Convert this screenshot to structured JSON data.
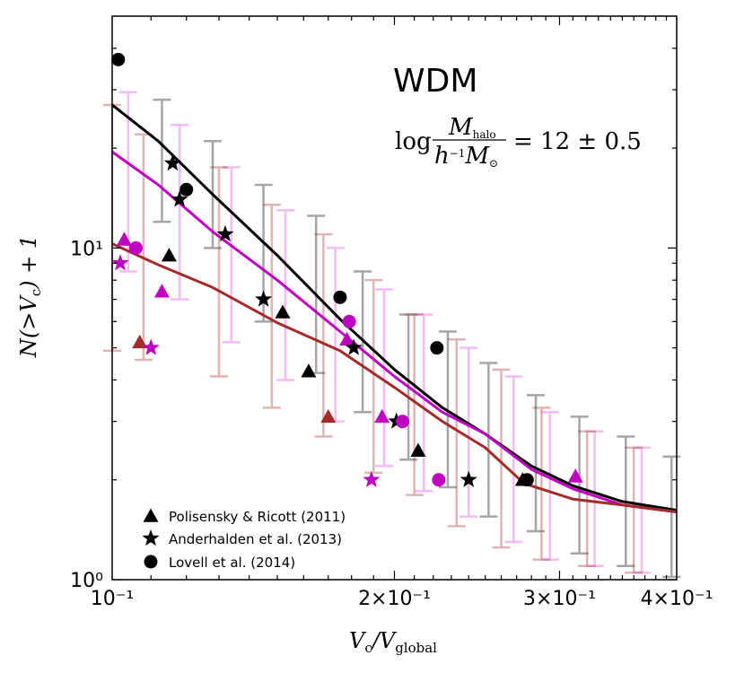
{
  "chart_data": {
    "type": "line",
    "title": "WDM",
    "annotation": "log M_halo / (h^-1 M_⊙) = 12 ± 0.5",
    "xlabel": "V_c / V_global",
    "ylabel": "N(>V_c) + 1",
    "xscale": "log",
    "yscale": "log",
    "xlim": [
      0.1,
      0.4
    ],
    "ylim": [
      1,
      50
    ],
    "x_tick_labels": [
      "10⁻¹",
      "2×10⁻¹",
      "3×10⁻¹",
      "4×10⁻¹"
    ],
    "y_tick_labels": [
      "10⁰",
      "10¹"
    ],
    "series": [
      {
        "name": "black line",
        "color": "#000000",
        "x": [
          0.1,
          0.112,
          0.128,
          0.15,
          0.175,
          0.2,
          0.225,
          0.25,
          0.28,
          0.31,
          0.35,
          0.4
        ],
        "y": [
          27,
          21,
          14.5,
          9.5,
          6.1,
          4.3,
          3.3,
          2.75,
          2.2,
          1.92,
          1.72,
          1.62
        ]
      },
      {
        "name": "magenta line",
        "color": "#c000c0",
        "x": [
          0.1,
          0.112,
          0.128,
          0.15,
          0.175,
          0.2,
          0.225,
          0.25,
          0.28,
          0.31,
          0.35,
          0.4
        ],
        "y": [
          19.5,
          15.5,
          11.2,
          8,
          5.6,
          4.1,
          3.2,
          2.75,
          2.15,
          1.88,
          1.68,
          1.6
        ]
      },
      {
        "name": "brown line",
        "color": "#a52a2a",
        "x": [
          0.1,
          0.112,
          0.128,
          0.15,
          0.175,
          0.2,
          0.225,
          0.25,
          0.275,
          0.31,
          0.35,
          0.4
        ],
        "y": [
          10.3,
          8.9,
          7.6,
          5.95,
          4.9,
          3.8,
          3.0,
          2.5,
          1.95,
          1.75,
          1.68,
          1.6
        ]
      }
    ],
    "error_bars": [
      {
        "color": "#000000",
        "x": 0.113,
        "low": 12,
        "high": 28
      },
      {
        "color": "#000000",
        "x": 0.128,
        "low": 10,
        "high": 21
      },
      {
        "color": "#000000",
        "x": 0.145,
        "low": 6,
        "high": 15.5
      },
      {
        "color": "#000000",
        "x": 0.165,
        "low": 4.2,
        "high": 12.5
      },
      {
        "color": "#000000",
        "x": 0.185,
        "low": 3.2,
        "high": 8.5
      },
      {
        "color": "#000000",
        "x": 0.207,
        "low": 2.3,
        "high": 6.3
      },
      {
        "color": "#000000",
        "x": 0.228,
        "low": 1.9,
        "high": 5.6
      },
      {
        "color": "#000000",
        "x": 0.252,
        "low": 1.55,
        "high": 4.5
      },
      {
        "color": "#000000",
        "x": 0.283,
        "low": 1.4,
        "high": 3.6
      },
      {
        "color": "#000000",
        "x": 0.315,
        "low": 1.2,
        "high": 3.1
      },
      {
        "color": "#000000",
        "x": 0.353,
        "low": 1.1,
        "high": 2.7
      },
      {
        "color": "#000000",
        "x": 0.395,
        "low": 1.02,
        "high": 2.35
      },
      {
        "color": "#e040e0",
        "x": 0.104,
        "low": 8.5,
        "high": 29.5
      },
      {
        "color": "#e040e0",
        "x": 0.118,
        "low": 7,
        "high": 23.5
      },
      {
        "color": "#e040e0",
        "x": 0.134,
        "low": 5.2,
        "high": 17.5
      },
      {
        "color": "#e040e0",
        "x": 0.153,
        "low": 4,
        "high": 13
      },
      {
        "color": "#e040e0",
        "x": 0.173,
        "low": 3,
        "high": 10
      },
      {
        "color": "#e040e0",
        "x": 0.195,
        "low": 2.2,
        "high": 7.5
      },
      {
        "color": "#e040e0",
        "x": 0.215,
        "low": 1.85,
        "high": 6.3
      },
      {
        "color": "#e040e0",
        "x": 0.24,
        "low": 1.55,
        "high": 5
      },
      {
        "color": "#e040e0",
        "x": 0.268,
        "low": 1.3,
        "high": 4.1
      },
      {
        "color": "#e040e0",
        "x": 0.293,
        "low": 1.15,
        "high": 3.2
      },
      {
        "color": "#e040e0",
        "x": 0.327,
        "low": 1.1,
        "high": 2.8
      },
      {
        "color": "#e040e0",
        "x": 0.367,
        "low": 1.05,
        "high": 2.5
      },
      {
        "color": "#a52a2a",
        "x": 0.1,
        "low": 4.9,
        "high": 27
      },
      {
        "color": "#a52a2a",
        "x": 0.108,
        "low": 4.6,
        "high": 22
      },
      {
        "color": "#a52a2a",
        "x": 0.13,
        "low": 4.1,
        "high": 17.5
      },
      {
        "color": "#a52a2a",
        "x": 0.148,
        "low": 3.3,
        "high": 13.5
      },
      {
        "color": "#a52a2a",
        "x": 0.168,
        "low": 2.7,
        "high": 11
      },
      {
        "color": "#a52a2a",
        "x": 0.19,
        "low": 2.1,
        "high": 8
      },
      {
        "color": "#a52a2a",
        "x": 0.21,
        "low": 1.8,
        "high": 6.3
      },
      {
        "color": "#a52a2a",
        "x": 0.233,
        "low": 1.45,
        "high": 5.3
      },
      {
        "color": "#a52a2a",
        "x": 0.26,
        "low": 1.25,
        "high": 4.3
      },
      {
        "color": "#a52a2a",
        "x": 0.287,
        "low": 1.15,
        "high": 3.3
      },
      {
        "color": "#a52a2a",
        "x": 0.321,
        "low": 1.1,
        "high": 2.8
      },
      {
        "color": "#a52a2a",
        "x": 0.36,
        "low": 1.05,
        "high": 2.5
      }
    ],
    "markers": [
      {
        "shape": "triangle",
        "color": "#000000",
        "x": 0.115,
        "y": 9.5
      },
      {
        "shape": "triangle",
        "color": "#000000",
        "x": 0.152,
        "y": 6.4
      },
      {
        "shape": "triangle",
        "color": "#000000",
        "x": 0.162,
        "y": 4.25
      },
      {
        "shape": "triangle",
        "color": "#000000",
        "x": 0.212,
        "y": 2.45
      },
      {
        "shape": "triangle",
        "color": "#000000",
        "x": 0.274,
        "y": 2.0
      },
      {
        "shape": "triangle",
        "color": "#c000c0",
        "x": 0.103,
        "y": 10.6
      },
      {
        "shape": "triangle",
        "color": "#c000c0",
        "x": 0.113,
        "y": 7.4
      },
      {
        "shape": "triangle",
        "color": "#c000c0",
        "x": 0.178,
        "y": 5.3
      },
      {
        "shape": "triangle",
        "color": "#c000c0",
        "x": 0.194,
        "y": 3.1
      },
      {
        "shape": "triangle",
        "color": "#c000c0",
        "x": 0.312,
        "y": 2.05
      },
      {
        "shape": "triangle",
        "color": "#a52a2a",
        "x": 0.107,
        "y": 5.2
      },
      {
        "shape": "triangle",
        "color": "#a52a2a",
        "x": 0.17,
        "y": 3.1
      },
      {
        "shape": "star",
        "color": "#000000",
        "x": 0.116,
        "y": 18
      },
      {
        "shape": "star",
        "color": "#000000",
        "x": 0.118,
        "y": 14
      },
      {
        "shape": "star",
        "color": "#000000",
        "x": 0.132,
        "y": 11
      },
      {
        "shape": "star",
        "color": "#000000",
        "x": 0.145,
        "y": 7
      },
      {
        "shape": "star",
        "color": "#000000",
        "x": 0.181,
        "y": 5
      },
      {
        "shape": "star",
        "color": "#000000",
        "x": 0.201,
        "y": 3
      },
      {
        "shape": "star",
        "color": "#000000",
        "x": 0.24,
        "y": 2.0
      },
      {
        "shape": "star",
        "color": "#c000c0",
        "x": 0.102,
        "y": 9
      },
      {
        "shape": "star",
        "color": "#c000c0",
        "x": 0.11,
        "y": 5.0
      },
      {
        "shape": "star",
        "color": "#c000c0",
        "x": 0.189,
        "y": 2.0
      },
      {
        "shape": "circle",
        "color": "#000000",
        "x": 0.1015,
        "y": 37
      },
      {
        "shape": "circle",
        "color": "#000000",
        "x": 0.12,
        "y": 15
      },
      {
        "shape": "circle",
        "color": "#000000",
        "x": 0.175,
        "y": 7.1
      },
      {
        "shape": "circle",
        "color": "#000000",
        "x": 0.222,
        "y": 5.0
      },
      {
        "shape": "circle",
        "color": "#000000",
        "x": 0.277,
        "y": 2.0
      },
      {
        "shape": "circle",
        "color": "#c000c0",
        "x": 0.106,
        "y": 10
      },
      {
        "shape": "circle",
        "color": "#c000c0",
        "x": 0.179,
        "y": 6.0
      },
      {
        "shape": "circle",
        "color": "#c000c0",
        "x": 0.204,
        "y": 3.0
      },
      {
        "shape": "circle",
        "color": "#c000c0",
        "x": 0.223,
        "y": 2.0
      }
    ],
    "legend": {
      "placement": "bottom-left",
      "entries": [
        {
          "shape": "triangle",
          "label": "Polisensky & Ricott (2011)"
        },
        {
          "shape": "star",
          "label": "Anderhalden et al. (2013)"
        },
        {
          "shape": "circle",
          "label": "Lovell et al. (2014)"
        }
      ]
    }
  }
}
